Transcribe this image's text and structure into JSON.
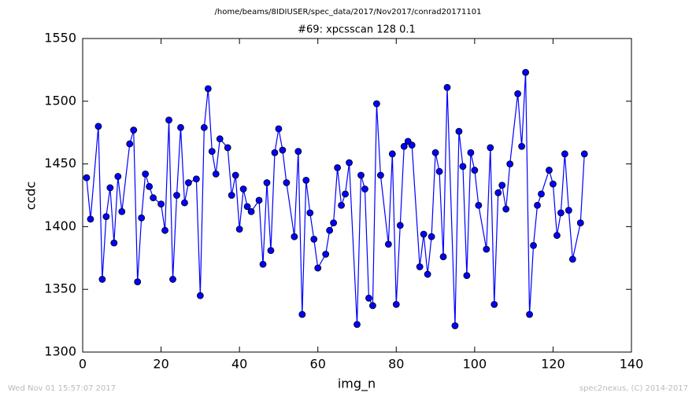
{
  "chart_data": {
    "type": "line",
    "suptitle": "/home/beams/8IDIUSER/spec_data/2017/Nov2017/conrad20171101",
    "title": "#69: xpcsscan 128 0.1",
    "x_label": "img_n",
    "y_label": "ccdc",
    "footer_left": "Wed Nov 01 15:57:07 2017",
    "footer_right": "spec2nexus, (C) 2014-2017",
    "xlim": [
      0,
      140
    ],
    "xticks": [
      0,
      20,
      40,
      60,
      80,
      100,
      120,
      140
    ],
    "ylim": [
      1300,
      1550
    ],
    "yticks": [
      1300,
      1350,
      1400,
      1450,
      1500,
      1550
    ],
    "grid": false,
    "x": [
      1,
      2,
      4,
      5,
      6,
      7,
      8,
      9,
      10,
      12,
      13,
      14,
      15,
      16,
      17,
      18,
      20,
      21,
      22,
      23,
      24,
      25,
      26,
      27,
      29,
      30,
      31,
      32,
      33,
      34,
      35,
      37,
      38,
      39,
      40,
      41,
      42,
      43,
      45,
      46,
      47,
      48,
      49,
      50,
      51,
      52,
      54,
      55,
      56,
      57,
      58,
      59,
      60,
      62,
      63,
      64,
      65,
      66,
      67,
      68,
      70,
      71,
      72,
      73,
      74,
      75,
      76,
      78,
      79,
      80,
      81,
      82,
      83,
      84,
      86,
      87,
      88,
      89,
      90,
      91,
      92,
      93,
      95,
      96,
      97,
      98,
      99,
      100,
      101,
      103,
      104,
      105,
      106,
      107,
      108,
      109,
      111,
      112,
      113,
      114,
      115,
      116,
      117,
      119,
      120,
      121,
      122,
      123,
      124,
      125,
      127,
      128
    ],
    "series": [
      {
        "name": "ccdc",
        "color": "#0000ff",
        "values": [
          1439,
          1406,
          1480,
          1358,
          1408,
          1431,
          1387,
          1440,
          1412,
          1466,
          1477,
          1356,
          1407,
          1442,
          1432,
          1423,
          1418,
          1397,
          1485,
          1358,
          1425,
          1479,
          1419,
          1435,
          1438,
          1345,
          1479,
          1510,
          1460,
          1442,
          1470,
          1463,
          1425,
          1441,
          1398,
          1430,
          1416,
          1412,
          1421,
          1370,
          1435,
          1381,
          1459,
          1478,
          1461,
          1435,
          1392,
          1460,
          1330,
          1437,
          1411,
          1390,
          1367,
          1378,
          1397,
          1403,
          1447,
          1417,
          1426,
          1451,
          1322,
          1441,
          1430,
          1343,
          1337,
          1498,
          1441,
          1386,
          1458,
          1338,
          1401,
          1464,
          1468,
          1465,
          1368,
          1394,
          1362,
          1392,
          1459,
          1444,
          1376,
          1511,
          1321,
          1476,
          1448,
          1361,
          1459,
          1445,
          1417,
          1382,
          1463,
          1338,
          1427,
          1433,
          1414,
          1450,
          1506,
          1464,
          1523,
          1330,
          1385,
          1417,
          1426,
          1445,
          1434,
          1393,
          1411,
          1458,
          1413,
          1374,
          1403,
          1458
        ]
      }
    ]
  }
}
